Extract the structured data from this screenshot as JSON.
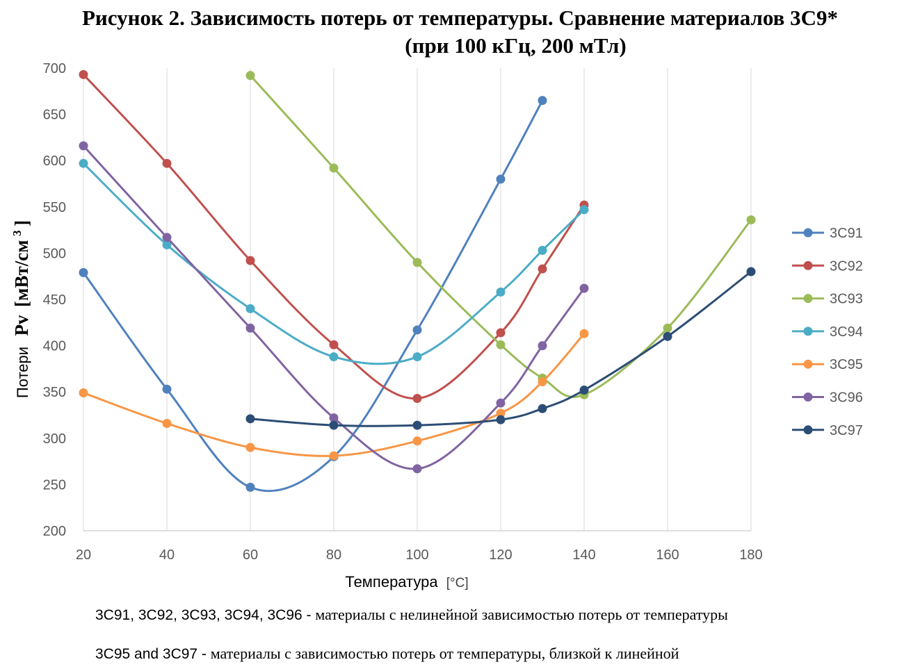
{
  "figure": {
    "title_line1": "Рисунок 2. Зависимость потерь от температуры. Сравнение материалов 3С9*",
    "title_line2": "(при 100 кГц, 200 мТл)"
  },
  "chart_data": {
    "type": "line",
    "smooth": true,
    "grid": "vertical lines",
    "legend_position": "right",
    "xlabel": "Температура",
    "xlabel_unit": "[°C]",
    "ylabel_prefix": "Потери",
    "ylabel_symbol": "Pv",
    "ylabel_unit": "[мВт/см",
    "ylabel_unit_sup": "3",
    "ylabel_unit_close": "]",
    "xlim": [
      20,
      180
    ],
    "ylim": [
      200,
      700
    ],
    "xticks": [
      20,
      40,
      60,
      80,
      100,
      120,
      140,
      160,
      180
    ],
    "yticks": [
      200,
      250,
      300,
      350,
      400,
      450,
      500,
      550,
      600,
      650,
      700
    ],
    "series": [
      {
        "name": "3C91",
        "color": "#4f81bd",
        "points": [
          [
            20,
            479
          ],
          [
            40,
            353
          ],
          [
            60,
            247
          ],
          [
            80,
            280
          ],
          [
            100,
            417
          ],
          [
            120,
            580
          ],
          [
            130,
            665
          ]
        ]
      },
      {
        "name": "3C92",
        "color": "#c0504d",
        "points": [
          [
            20,
            693
          ],
          [
            40,
            597
          ],
          [
            60,
            492
          ],
          [
            80,
            401
          ],
          [
            100,
            343
          ],
          [
            120,
            414
          ],
          [
            130,
            483
          ],
          [
            140,
            552
          ]
        ]
      },
      {
        "name": "3C93",
        "color": "#9bbb59",
        "points": [
          [
            60,
            692
          ],
          [
            80,
            592
          ],
          [
            100,
            490
          ],
          [
            120,
            401
          ],
          [
            130,
            365
          ],
          [
            140,
            347
          ],
          [
            160,
            419
          ],
          [
            180,
            536
          ]
        ]
      },
      {
        "name": "3C94",
        "color": "#4bacc6",
        "points": [
          [
            20,
            597
          ],
          [
            40,
            509
          ],
          [
            60,
            440
          ],
          [
            80,
            388
          ],
          [
            100,
            388
          ],
          [
            120,
            458
          ],
          [
            130,
            503
          ],
          [
            140,
            547
          ]
        ]
      },
      {
        "name": "3C95",
        "color": "#f79646",
        "points": [
          [
            20,
            349
          ],
          [
            40,
            316
          ],
          [
            60,
            290
          ],
          [
            80,
            281
          ],
          [
            100,
            297
          ],
          [
            120,
            327
          ],
          [
            130,
            361
          ],
          [
            140,
            413
          ]
        ]
      },
      {
        "name": "3C96",
        "color": "#8064a2",
        "points": [
          [
            20,
            616
          ],
          [
            40,
            517
          ],
          [
            60,
            419
          ],
          [
            80,
            322
          ],
          [
            100,
            267
          ],
          [
            120,
            338
          ],
          [
            130,
            400
          ],
          [
            140,
            462
          ]
        ]
      },
      {
        "name": "3C97",
        "color": "#2c4d75",
        "points": [
          [
            60,
            321
          ],
          [
            80,
            314
          ],
          [
            100,
            314
          ],
          [
            120,
            320
          ],
          [
            130,
            332
          ],
          [
            140,
            352
          ],
          [
            160,
            410
          ],
          [
            180,
            480
          ]
        ]
      }
    ]
  },
  "notes": [
    {
      "materials": "3C91, 3C92, 3C93, 3C94, 3C96 - ",
      "text": "материалы с нелинейной зависимостью потерь от температуры"
    },
    {
      "materials": "3C95 and 3C97 -  ",
      "text": "материалы с зависимостью потерь от температуры, близкой к линейной"
    }
  ]
}
